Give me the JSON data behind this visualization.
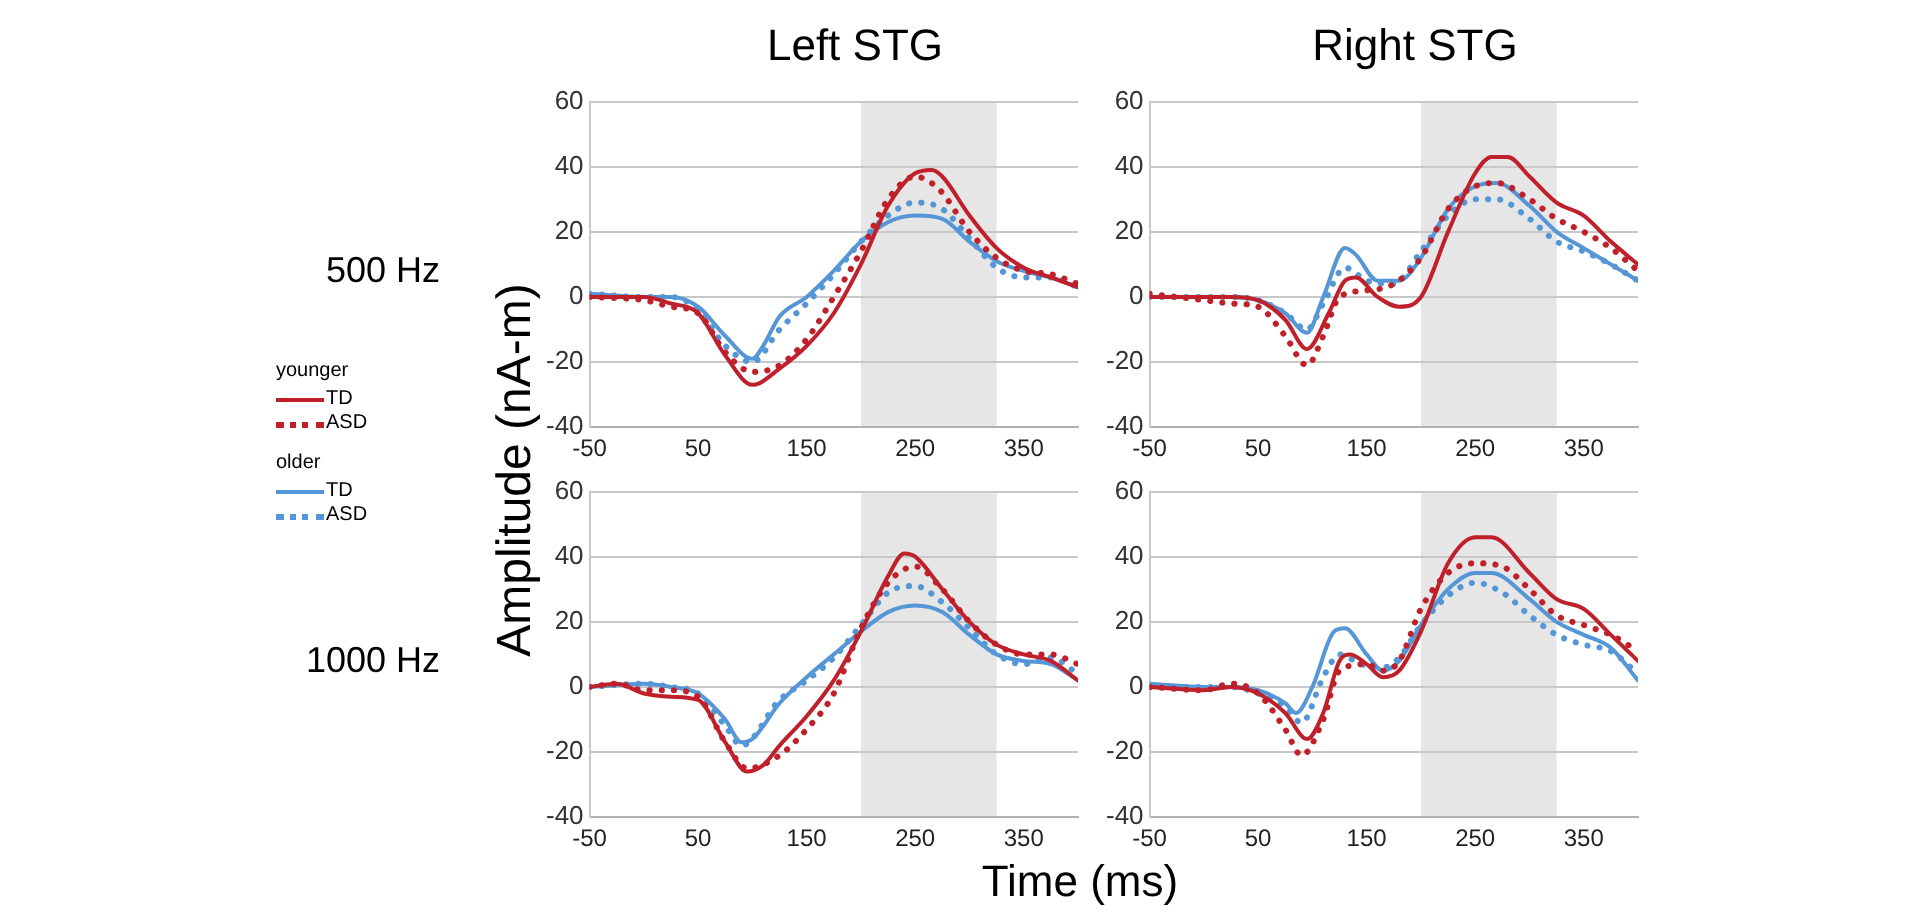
{
  "chart_data": [
    {
      "type": "line",
      "title": "Left STG",
      "subtitle": "500 Hz",
      "ylabel": "Amplitude (nA-m)",
      "legend": "left",
      "annotations": [
        "younger",
        "older"
      ],
      "marker": "none",
      "grid": "y",
      "xlim": [
        -50,
        400
      ],
      "ylim": [
        -40,
        60
      ],
      "xticks": [
        -50,
        50,
        150,
        250,
        350
      ],
      "yticks": [
        -40,
        -20,
        0,
        20,
        40,
        60
      ],
      "bands": [
        {
          "axis": "x",
          "from": 200,
          "to": 325,
          "color": "#e6e6e6"
        }
      ],
      "series": [
        {
          "name": "TD",
          "color": "#c0202a",
          "line_style": "solid",
          "x": [
            -50,
            0,
            25,
            50,
            75,
            100,
            125,
            150,
            175,
            200,
            225,
            250,
            265,
            275,
            300,
            325,
            350,
            375,
            400
          ],
          "values": [
            0,
            0,
            -2,
            -5,
            -18,
            -27,
            -22,
            -15,
            -5,
            10,
            28,
            38,
            39,
            37,
            25,
            15,
            9,
            6,
            3
          ]
        },
        {
          "name": "ASD",
          "color": "#c0202a",
          "line_style": "dotted",
          "x": [
            -50,
            0,
            25,
            50,
            75,
            100,
            125,
            150,
            175,
            200,
            225,
            250,
            265,
            275,
            300,
            325,
            350,
            375,
            400
          ],
          "values": [
            0,
            -1,
            -3,
            -5,
            -17,
            -23,
            -21,
            -13,
            0,
            14,
            30,
            37,
            35,
            32,
            20,
            12,
            8,
            7,
            4
          ]
        },
        {
          "name": "TD",
          "color": "#5596d6",
          "line_style": "solid",
          "x": [
            -50,
            0,
            25,
            50,
            75,
            100,
            110,
            125,
            150,
            175,
            200,
            225,
            250,
            275,
            300,
            325,
            350,
            375,
            400
          ],
          "values": [
            1,
            0,
            0,
            -3,
            -12,
            -19,
            -15,
            -6,
            0,
            8,
            17,
            23,
            25,
            24,
            17,
            11,
            8,
            6,
            3
          ]
        },
        {
          "name": "ASD",
          "color": "#5596d6",
          "line_style": "dotted",
          "x": [
            -50,
            0,
            25,
            50,
            75,
            100,
            125,
            150,
            175,
            200,
            225,
            250,
            275,
            300,
            325,
            350,
            375,
            400
          ],
          "values": [
            1,
            0,
            0,
            -4,
            -15,
            -20,
            -10,
            -2,
            7,
            17,
            25,
            29,
            27,
            18,
            9,
            6,
            6,
            3
          ]
        }
      ]
    },
    {
      "type": "line",
      "title": "Right STG",
      "legend": false,
      "marker": "none",
      "grid": "y",
      "xlim": [
        -50,
        400
      ],
      "ylim": [
        -40,
        60
      ],
      "xticks": [
        -50,
        50,
        150,
        250,
        350
      ],
      "yticks": [
        -40,
        -20,
        0,
        20,
        40,
        60
      ],
      "bands": [
        {
          "axis": "x",
          "from": 200,
          "to": 325,
          "color": "#e6e6e6"
        }
      ],
      "series": [
        {
          "color": "#c0202a",
          "line_style": "solid",
          "x": [
            -50,
            0,
            25,
            50,
            75,
            95,
            115,
            130,
            140,
            160,
            180,
            200,
            225,
            250,
            265,
            280,
            300,
            325,
            350,
            375,
            400
          ],
          "values": [
            0,
            0,
            0,
            -1,
            -7,
            -16,
            -5,
            5,
            6,
            0,
            -3,
            0,
            20,
            38,
            43,
            43,
            37,
            29,
            25,
            17,
            10
          ]
        },
        {
          "color": "#c0202a",
          "line_style": "dotted",
          "x": [
            -50,
            0,
            25,
            50,
            75,
            95,
            110,
            125,
            150,
            175,
            200,
            225,
            250,
            270,
            300,
            325,
            350,
            375,
            400
          ],
          "values": [
            1,
            -1,
            -2,
            -3,
            -12,
            -21,
            -12,
            0,
            2,
            4,
            12,
            27,
            34,
            35,
            30,
            24,
            20,
            15,
            8
          ]
        },
        {
          "color": "#5596d6",
          "line_style": "solid",
          "x": [
            -50,
            0,
            25,
            50,
            75,
            95,
            110,
            130,
            140,
            160,
            180,
            200,
            225,
            250,
            270,
            300,
            325,
            350,
            375,
            400
          ],
          "values": [
            0,
            0,
            0,
            -1,
            -5,
            -11,
            0,
            15,
            13,
            5,
            5,
            12,
            27,
            34,
            35,
            28,
            20,
            15,
            10,
            5
          ]
        },
        {
          "color": "#5596d6",
          "line_style": "dotted",
          "x": [
            -50,
            0,
            25,
            50,
            75,
            95,
            110,
            130,
            150,
            175,
            200,
            225,
            250,
            270,
            300,
            325,
            350,
            375,
            400
          ],
          "values": [
            0,
            0,
            0,
            -1,
            -5,
            -10,
            -2,
            9,
            5,
            4,
            14,
            25,
            30,
            30,
            24,
            17,
            14,
            10,
            5
          ]
        }
      ]
    },
    {
      "type": "line",
      "subtitle": "1000 Hz",
      "xlabel": "Time (ms)",
      "legend": false,
      "marker": "none",
      "grid": "y",
      "xlim": [
        -50,
        400
      ],
      "ylim": [
        -40,
        60
      ],
      "xticks": [
        -50,
        50,
        150,
        250,
        350
      ],
      "yticks": [
        -40,
        -20,
        0,
        20,
        40,
        60
      ],
      "bands": [
        {
          "axis": "x",
          "from": 200,
          "to": 325,
          "color": "#e6e6e6"
        }
      ],
      "series": [
        {
          "color": "#c0202a",
          "line_style": "solid",
          "x": [
            -50,
            -25,
            0,
            25,
            50,
            75,
            95,
            110,
            125,
            150,
            175,
            200,
            225,
            240,
            250,
            275,
            300,
            325,
            350,
            375,
            400
          ],
          "values": [
            0,
            1,
            -2,
            -3,
            -4,
            -17,
            -26,
            -24,
            -18,
            -9,
            2,
            17,
            34,
            41,
            40,
            30,
            20,
            13,
            10,
            8,
            2
          ]
        },
        {
          "color": "#c0202a",
          "line_style": "dotted",
          "x": [
            -50,
            -25,
            0,
            25,
            50,
            75,
            95,
            125,
            150,
            175,
            200,
            225,
            250,
            275,
            300,
            325,
            350,
            375,
            400
          ],
          "values": [
            0,
            1,
            -1,
            -1,
            -3,
            -17,
            -25,
            -21,
            -13,
            -2,
            18,
            32,
            37,
            30,
            20,
            13,
            10,
            10,
            7
          ]
        },
        {
          "color": "#5596d6",
          "line_style": "solid",
          "x": [
            -50,
            0,
            25,
            50,
            75,
            90,
            100,
            125,
            150,
            175,
            200,
            225,
            250,
            275,
            300,
            325,
            350,
            375,
            400
          ],
          "values": [
            0,
            1,
            0,
            -2,
            -10,
            -17,
            -16,
            -5,
            3,
            10,
            17,
            23,
            25,
            23,
            16,
            10,
            8,
            7,
            2
          ]
        },
        {
          "color": "#5596d6",
          "line_style": "dotted",
          "x": [
            -50,
            0,
            25,
            50,
            75,
            90,
            125,
            150,
            175,
            200,
            225,
            250,
            275,
            300,
            325,
            350,
            375,
            400
          ],
          "values": [
            0,
            1,
            0,
            -2,
            -12,
            -18,
            -4,
            2,
            9,
            19,
            29,
            31,
            26,
            18,
            10,
            7,
            9,
            4
          ]
        }
      ]
    },
    {
      "type": "line",
      "legend": false,
      "marker": "none",
      "grid": "y",
      "xlim": [
        -50,
        400
      ],
      "ylim": [
        -40,
        60
      ],
      "xticks": [
        -50,
        50,
        150,
        250,
        350
      ],
      "yticks": [
        -40,
        -20,
        0,
        20,
        40,
        60
      ],
      "bands": [
        {
          "axis": "x",
          "from": 200,
          "to": 325,
          "color": "#e6e6e6"
        }
      ],
      "series": [
        {
          "color": "#c0202a",
          "line_style": "solid",
          "x": [
            -50,
            0,
            25,
            50,
            75,
            95,
            110,
            125,
            135,
            150,
            165,
            180,
            200,
            225,
            250,
            265,
            300,
            325,
            350,
            375,
            400
          ],
          "values": [
            0,
            -1,
            0,
            -2,
            -8,
            -16,
            -8,
            8,
            10,
            7,
            3,
            5,
            17,
            38,
            46,
            46,
            35,
            27,
            24,
            16,
            8
          ]
        },
        {
          "color": "#c0202a",
          "line_style": "dotted",
          "x": [
            -50,
            0,
            25,
            50,
            75,
            90,
            110,
            125,
            150,
            165,
            180,
            200,
            225,
            250,
            275,
            300,
            325,
            350,
            375,
            400
          ],
          "values": [
            0,
            -1,
            1,
            -2,
            -13,
            -21,
            -10,
            5,
            7,
            5,
            8,
            24,
            35,
            38,
            37,
            30,
            22,
            19,
            16,
            11
          ]
        },
        {
          "color": "#5596d6",
          "line_style": "solid",
          "x": [
            -50,
            0,
            25,
            50,
            75,
            85,
            100,
            120,
            130,
            150,
            165,
            180,
            200,
            225,
            250,
            265,
            300,
            325,
            350,
            375,
            400
          ],
          "values": [
            1,
            0,
            0,
            -1,
            -5,
            -8,
            0,
            17,
            18,
            10,
            5,
            8,
            19,
            30,
            35,
            35,
            27,
            20,
            16,
            12,
            2
          ]
        },
        {
          "color": "#5596d6",
          "line_style": "dotted",
          "x": [
            -50,
            0,
            25,
            50,
            75,
            90,
            110,
            125,
            145,
            165,
            180,
            200,
            225,
            250,
            275,
            300,
            325,
            350,
            375,
            400
          ],
          "values": [
            0,
            0,
            0,
            -2,
            -6,
            -11,
            3,
            10,
            7,
            6,
            9,
            19,
            28,
            32,
            29,
            22,
            16,
            13,
            11,
            4
          ]
        }
      ]
    }
  ]
}
